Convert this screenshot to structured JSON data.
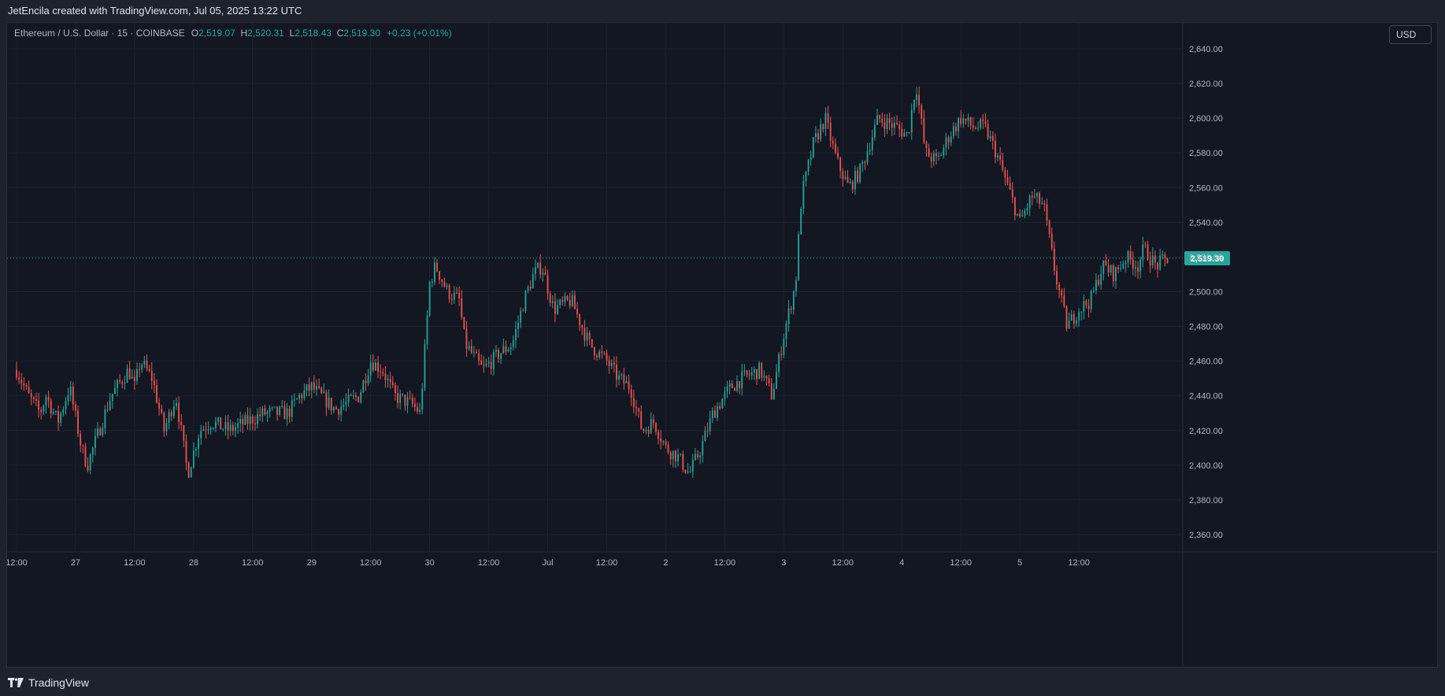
{
  "header": {
    "credit": "JetEncila created with TradingView.com, Jul 05, 2025 13:22 UTC"
  },
  "legend": {
    "symbol": "Ethereum / U.S. Dollar · 15 · COINBASE",
    "o_label": "O",
    "o_value": "2,519.07",
    "h_label": "H",
    "h_value": "2,520.31",
    "l_label": "L",
    "l_value": "2,518.43",
    "c_label": "C",
    "c_value": "2,519.30",
    "change": "+0.23 (+0.01%)"
  },
  "currency_label": "USD",
  "footer": {
    "brand": "TradingView"
  },
  "colors": {
    "up": "#26a69a",
    "down": "#ef5350",
    "background": "#131722",
    "grid": "#1f2330",
    "axis_text": "#b2b5be"
  },
  "chart_data": {
    "type": "candlestick",
    "interval": "15",
    "last_price": 2519.3,
    "last_price_label": "2,519.30",
    "ylim": [
      2350,
      2655
    ],
    "y_ticks": [
      2360,
      2380,
      2400,
      2420,
      2440,
      2460,
      2480,
      2500,
      2520,
      2540,
      2560,
      2580,
      2600,
      2620,
      2640
    ],
    "y_tick_labels": [
      "2,360.00",
      "2,380.00",
      "2,400.00",
      "2,420.00",
      "2,440.00",
      "2,460.00",
      "2,480.00",
      "2,500.00",
      "2,520.00",
      "2,540.00",
      "2,560.00",
      "2,580.00",
      "2,600.00",
      "2,620.00",
      "2,640.00"
    ],
    "x_ticks": [
      {
        "t": 0,
        "label": "12:00"
      },
      {
        "t": 0.5,
        "label": "27"
      },
      {
        "t": 1,
        "label": "12:00"
      },
      {
        "t": 1.5,
        "label": "28"
      },
      {
        "t": 2,
        "label": "12:00"
      },
      {
        "t": 2.5,
        "label": "29"
      },
      {
        "t": 3,
        "label": "12:00"
      },
      {
        "t": 3.5,
        "label": "30"
      },
      {
        "t": 4,
        "label": "12:00"
      },
      {
        "t": 4.5,
        "label": "Jul"
      },
      {
        "t": 5,
        "label": "12:00"
      },
      {
        "t": 5.5,
        "label": "2"
      },
      {
        "t": 6,
        "label": "12:00"
      },
      {
        "t": 6.5,
        "label": "3"
      },
      {
        "t": 7,
        "label": "12:00"
      },
      {
        "t": 7.5,
        "label": "4"
      },
      {
        "t": 8,
        "label": "12:00"
      },
      {
        "t": 8.5,
        "label": "5"
      },
      {
        "t": 9,
        "label": "12:00"
      }
    ],
    "price_path": [
      [
        0.0,
        2455
      ],
      [
        0.1,
        2440
      ],
      [
        0.2,
        2430
      ],
      [
        0.25,
        2440
      ],
      [
        0.35,
        2425
      ],
      [
        0.45,
        2445
      ],
      [
        0.55,
        2410
      ],
      [
        0.6,
        2400
      ],
      [
        0.7,
        2420
      ],
      [
        0.8,
        2440
      ],
      [
        0.95,
        2455
      ],
      [
        1.0,
        2445
      ],
      [
        1.05,
        2460
      ],
      [
        1.15,
        2450
      ],
      [
        1.25,
        2420
      ],
      [
        1.35,
        2440
      ],
      [
        1.45,
        2395
      ],
      [
        1.55,
        2420
      ],
      [
        1.65,
        2425
      ],
      [
        1.8,
        2420
      ],
      [
        1.95,
        2425
      ],
      [
        2.1,
        2430
      ],
      [
        2.3,
        2430
      ],
      [
        2.4,
        2440
      ],
      [
        2.5,
        2445
      ],
      [
        2.7,
        2432
      ],
      [
        2.9,
        2440
      ],
      [
        3.0,
        2460
      ],
      [
        3.1,
        2455
      ],
      [
        3.2,
        2440
      ],
      [
        3.35,
        2435
      ],
      [
        3.42,
        2430
      ],
      [
        3.5,
        2505
      ],
      [
        3.55,
        2515
      ],
      [
        3.65,
        2500
      ],
      [
        3.75,
        2495
      ],
      [
        3.8,
        2470
      ],
      [
        3.95,
        2455
      ],
      [
        4.1,
        2465
      ],
      [
        4.2,
        2470
      ],
      [
        4.3,
        2495
      ],
      [
        4.38,
        2510
      ],
      [
        4.45,
        2515
      ],
      [
        4.55,
        2490
      ],
      [
        4.7,
        2495
      ],
      [
        4.85,
        2470
      ],
      [
        5.0,
        2460
      ],
      [
        5.1,
        2450
      ],
      [
        5.2,
        2445
      ],
      [
        5.3,
        2420
      ],
      [
        5.4,
        2425
      ],
      [
        5.5,
        2410
      ],
      [
        5.6,
        2405
      ],
      [
        5.7,
        2395
      ],
      [
        5.8,
        2410
      ],
      [
        5.9,
        2430
      ],
      [
        6.05,
        2445
      ],
      [
        6.15,
        2450
      ],
      [
        6.3,
        2455
      ],
      [
        6.4,
        2440
      ],
      [
        6.5,
        2475
      ],
      [
        6.6,
        2505
      ],
      [
        6.65,
        2555
      ],
      [
        6.75,
        2585
      ],
      [
        6.85,
        2600
      ],
      [
        6.95,
        2575
      ],
      [
        7.05,
        2560
      ],
      [
        7.15,
        2570
      ],
      [
        7.3,
        2600
      ],
      [
        7.45,
        2595
      ],
      [
        7.55,
        2590
      ],
      [
        7.62,
        2620
      ],
      [
        7.7,
        2580
      ],
      [
        7.8,
        2575
      ],
      [
        7.9,
        2590
      ],
      [
        8.0,
        2600
      ],
      [
        8.1,
        2595
      ],
      [
        8.2,
        2595
      ],
      [
        8.3,
        2580
      ],
      [
        8.4,
        2560
      ],
      [
        8.5,
        2540
      ],
      [
        8.6,
        2555
      ],
      [
        8.7,
        2550
      ],
      [
        8.8,
        2510
      ],
      [
        8.9,
        2480
      ],
      [
        9.0,
        2490
      ],
      [
        9.1,
        2495
      ],
      [
        9.2,
        2515
      ],
      [
        9.3,
        2510
      ],
      [
        9.4,
        2520
      ],
      [
        9.5,
        2515
      ],
      [
        9.55,
        2525
      ],
      [
        9.65,
        2515
      ],
      [
        9.75,
        2519
      ]
    ]
  }
}
